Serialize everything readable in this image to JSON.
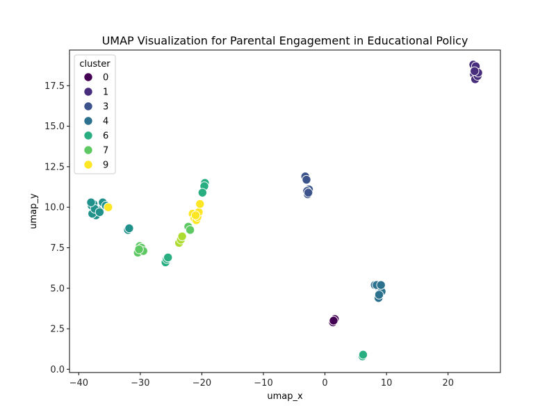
{
  "chart_data": {
    "type": "scatter",
    "title": "UMAP Visualization for Parental Engagement in Educational Policy",
    "xlabel": "umap_x",
    "ylabel": "umap_y",
    "xlim": [
      -41.5,
      28.5
    ],
    "ylim": [
      -0.2,
      19.7
    ],
    "xticks": [
      -40,
      -30,
      -20,
      -10,
      0,
      10,
      20
    ],
    "yticks": [
      0.0,
      2.5,
      5.0,
      7.5,
      10.0,
      12.5,
      15.0,
      17.5
    ],
    "xtick_labels": [
      "−40",
      "−30",
      "−20",
      "−10",
      "0",
      "10",
      "20"
    ],
    "ytick_labels": [
      "0.0",
      "2.5",
      "5.0",
      "7.5",
      "10.0",
      "12.5",
      "15.0",
      "17.5"
    ],
    "grid": false,
    "legend": {
      "title": "cluster",
      "placement": "top-left",
      "entries": [
        {
          "label": "0",
          "color": "#440154"
        },
        {
          "label": "1",
          "color": "#472d7b"
        },
        {
          "label": "3",
          "color": "#3b528b"
        },
        {
          "label": "4",
          "color": "#2c728e"
        },
        {
          "label": "6",
          "color": "#28ae80"
        },
        {
          "label": "7",
          "color": "#5ec962"
        },
        {
          "label": "9",
          "color": "#fde725"
        }
      ]
    },
    "series_colors": {
      "0": "#440154",
      "1": "#472d7b",
      "2": "#3b528b",
      "3": "#2c728e",
      "4": "#21918c",
      "5": "#28ae80",
      "6": "#5ec962",
      "7": "#addc30",
      "8": "#fde725"
    },
    "series": [
      {
        "cluster": "0",
        "points": [
          [
            1.6,
            3.1
          ],
          [
            1.3,
            2.9
          ],
          [
            1.4,
            3.0
          ]
        ]
      },
      {
        "cluster": "1",
        "points": [
          [
            24.1,
            18.8
          ],
          [
            24.6,
            18.5
          ],
          [
            24.2,
            18.2
          ],
          [
            24.4,
            17.9
          ],
          [
            24.8,
            18.1
          ],
          [
            24.5,
            18.7
          ],
          [
            24.9,
            18.3
          ],
          [
            24.3,
            18.4
          ]
        ]
      },
      {
        "cluster": "2",
        "points": [
          [
            -3.2,
            11.9
          ],
          [
            -3.0,
            11.7
          ],
          [
            -2.6,
            11.1
          ],
          [
            -2.8,
            10.8
          ],
          [
            -2.9,
            11.0
          ],
          [
            -2.7,
            10.9
          ]
        ]
      },
      {
        "cluster": "3",
        "points": [
          [
            8.1,
            5.2
          ],
          [
            8.6,
            5.1
          ],
          [
            9.0,
            5.0
          ],
          [
            8.9,
            4.7
          ],
          [
            9.2,
            4.8
          ],
          [
            8.7,
            4.4
          ],
          [
            8.4,
            5.2
          ],
          [
            9.1,
            5.2
          ],
          [
            8.8,
            4.6
          ]
        ]
      },
      {
        "cluster": "4",
        "points": [
          [
            -37.9,
            10.1
          ],
          [
            -37.6,
            10.2
          ],
          [
            -37.2,
            9.5
          ],
          [
            -37.8,
            9.6
          ],
          [
            -36.8,
            9.8
          ],
          [
            -36.1,
            10.3
          ],
          [
            -35.6,
            10.1
          ],
          [
            -37.4,
            9.9
          ],
          [
            -36.6,
            9.7
          ],
          [
            -38.0,
            10.3
          ],
          [
            -32.0,
            8.6
          ],
          [
            -31.8,
            8.7
          ]
        ]
      },
      {
        "cluster": "5",
        "points": [
          [
            -25.9,
            6.6
          ],
          [
            -25.7,
            6.8
          ],
          [
            -25.5,
            6.9
          ],
          [
            -19.5,
            11.5
          ],
          [
            -19.6,
            11.3
          ],
          [
            -19.9,
            10.9
          ],
          [
            6.1,
            0.8
          ],
          [
            6.2,
            0.9
          ]
        ]
      },
      {
        "cluster": "6",
        "points": [
          [
            -30.4,
            7.2
          ],
          [
            -30.1,
            7.6
          ],
          [
            -29.8,
            7.5
          ],
          [
            -29.5,
            7.3
          ],
          [
            -30.2,
            7.4
          ],
          [
            -22.2,
            8.8
          ],
          [
            -21.9,
            8.6
          ]
        ]
      },
      {
        "cluster": "7",
        "points": [
          [
            -23.7,
            7.8
          ],
          [
            -23.4,
            8.0
          ],
          [
            -23.2,
            8.2
          ]
        ]
      },
      {
        "cluster": "8",
        "points": [
          [
            -35.2,
            10.0
          ],
          [
            -21.5,
            9.6
          ],
          [
            -21.2,
            9.3
          ],
          [
            -20.9,
            9.2
          ],
          [
            -20.7,
            9.4
          ],
          [
            -20.5,
            9.7
          ],
          [
            -20.3,
            10.2
          ],
          [
            -21.0,
            9.5
          ]
        ]
      }
    ]
  }
}
